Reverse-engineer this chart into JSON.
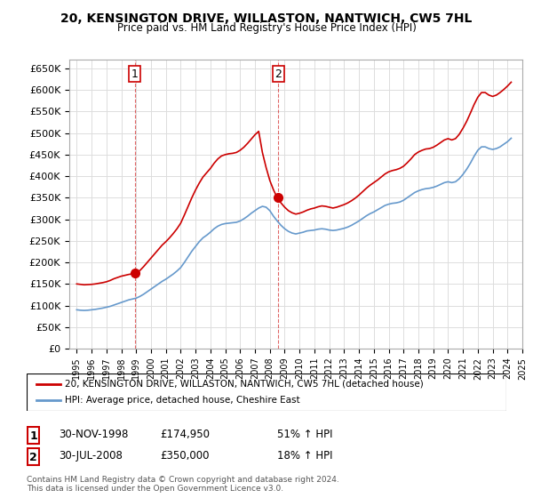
{
  "title": "20, KENSINGTON DRIVE, WILLASTON, NANTWICH, CW5 7HL",
  "subtitle": "Price paid vs. HM Land Registry's House Price Index (HPI)",
  "legend_line1": "20, KENSINGTON DRIVE, WILLASTON, NANTWICH, CW5 7HL (detached house)",
  "legend_line2": "HPI: Average price, detached house, Cheshire East",
  "sale1_label": "1",
  "sale1_date": "30-NOV-1998",
  "sale1_price": "£174,950",
  "sale1_hpi": "51% ↑ HPI",
  "sale2_label": "2",
  "sale2_date": "30-JUL-2008",
  "sale2_price": "£350,000",
  "sale2_hpi": "18% ↑ HPI",
  "copyright": "Contains HM Land Registry data © Crown copyright and database right 2024.\nThis data is licensed under the Open Government Licence v3.0.",
  "line_color_red": "#cc0000",
  "line_color_blue": "#6699cc",
  "marker_color_red": "#cc0000",
  "background_color": "#ffffff",
  "grid_color": "#dddddd",
  "ylim": [
    0,
    670000
  ],
  "yticks": [
    0,
    50000,
    100000,
    150000,
    200000,
    250000,
    300000,
    350000,
    400000,
    450000,
    500000,
    550000,
    600000,
    650000
  ],
  "ylabel_format": "£{0}K",
  "sale1_year": 1998.92,
  "sale1_value": 174950,
  "sale2_year": 2008.58,
  "sale2_value": 350000,
  "hpi_years": [
    1995.0,
    1995.25,
    1995.5,
    1995.75,
    1996.0,
    1996.25,
    1996.5,
    1996.75,
    1997.0,
    1997.25,
    1997.5,
    1997.75,
    1998.0,
    1998.25,
    1998.5,
    1998.75,
    1999.0,
    1999.25,
    1999.5,
    1999.75,
    2000.0,
    2000.25,
    2000.5,
    2000.75,
    2001.0,
    2001.25,
    2001.5,
    2001.75,
    2002.0,
    2002.25,
    2002.5,
    2002.75,
    2003.0,
    2003.25,
    2003.5,
    2003.75,
    2004.0,
    2004.25,
    2004.5,
    2004.75,
    2005.0,
    2005.25,
    2005.5,
    2005.75,
    2006.0,
    2006.25,
    2006.5,
    2006.75,
    2007.0,
    2007.25,
    2007.5,
    2007.75,
    2008.0,
    2008.25,
    2008.5,
    2008.75,
    2009.0,
    2009.25,
    2009.5,
    2009.75,
    2010.0,
    2010.25,
    2010.5,
    2010.75,
    2011.0,
    2011.25,
    2011.5,
    2011.75,
    2012.0,
    2012.25,
    2012.5,
    2012.75,
    2013.0,
    2013.25,
    2013.5,
    2013.75,
    2014.0,
    2014.25,
    2014.5,
    2014.75,
    2015.0,
    2015.25,
    2015.5,
    2015.75,
    2016.0,
    2016.25,
    2016.5,
    2016.75,
    2017.0,
    2017.25,
    2017.5,
    2017.75,
    2018.0,
    2018.25,
    2018.5,
    2018.75,
    2019.0,
    2019.25,
    2019.5,
    2019.75,
    2020.0,
    2020.25,
    2020.5,
    2020.75,
    2021.0,
    2021.25,
    2021.5,
    2021.75,
    2022.0,
    2022.25,
    2022.5,
    2022.75,
    2023.0,
    2023.25,
    2023.5,
    2023.75,
    2024.0,
    2024.25
  ],
  "hpi_values": [
    90000,
    89000,
    88500,
    89000,
    90000,
    91000,
    92500,
    94000,
    96000,
    98000,
    101000,
    104000,
    107000,
    110000,
    113000,
    115000,
    117000,
    121000,
    126000,
    132000,
    138000,
    144000,
    150000,
    156000,
    161000,
    167000,
    173000,
    180000,
    188000,
    200000,
    213000,
    226000,
    237000,
    248000,
    257000,
    263000,
    270000,
    278000,
    284000,
    288000,
    290000,
    291000,
    292000,
    293000,
    296000,
    301000,
    307000,
    314000,
    320000,
    326000,
    330000,
    328000,
    320000,
    307000,
    296000,
    286000,
    278000,
    272000,
    268000,
    266000,
    268000,
    270000,
    273000,
    274000,
    275000,
    277000,
    278000,
    277000,
    275000,
    274000,
    275000,
    277000,
    279000,
    282000,
    286000,
    291000,
    296000,
    302000,
    308000,
    313000,
    317000,
    322000,
    327000,
    332000,
    335000,
    337000,
    338000,
    340000,
    344000,
    350000,
    356000,
    362000,
    366000,
    369000,
    371000,
    372000,
    374000,
    377000,
    381000,
    385000,
    387000,
    385000,
    387000,
    394000,
    404000,
    416000,
    430000,
    446000,
    460000,
    468000,
    468000,
    464000,
    462000,
    464000,
    468000,
    474000,
    480000,
    488000
  ],
  "red_years": [
    1995.0,
    1995.25,
    1995.5,
    1995.75,
    1996.0,
    1996.25,
    1996.5,
    1996.75,
    1997.0,
    1997.25,
    1997.5,
    1997.75,
    1998.0,
    1998.25,
    1998.5,
    1998.75,
    1999.0,
    1999.25,
    1999.5,
    1999.75,
    2000.0,
    2000.25,
    2000.5,
    2000.75,
    2001.0,
    2001.25,
    2001.5,
    2001.75,
    2002.0,
    2002.25,
    2002.5,
    2002.75,
    2003.0,
    2003.25,
    2003.5,
    2003.75,
    2004.0,
    2004.25,
    2004.5,
    2004.75,
    2005.0,
    2005.25,
    2005.5,
    2005.75,
    2006.0,
    2006.25,
    2006.5,
    2006.75,
    2007.0,
    2007.25,
    2007.5,
    2007.75,
    2008.0,
    2008.25,
    2008.5,
    2008.75,
    2009.0,
    2009.25,
    2009.5,
    2009.75,
    2010.0,
    2010.25,
    2010.5,
    2010.75,
    2011.0,
    2011.25,
    2011.5,
    2011.75,
    2012.0,
    2012.25,
    2012.5,
    2012.75,
    2013.0,
    2013.25,
    2013.5,
    2013.75,
    2014.0,
    2014.25,
    2014.5,
    2014.75,
    2015.0,
    2015.25,
    2015.5,
    2015.75,
    2016.0,
    2016.25,
    2016.5,
    2016.75,
    2017.0,
    2017.25,
    2017.5,
    2017.75,
    2018.0,
    2018.25,
    2018.5,
    2018.75,
    2019.0,
    2019.25,
    2019.5,
    2019.75,
    2020.0,
    2020.25,
    2020.5,
    2020.75,
    2021.0,
    2021.25,
    2021.5,
    2021.75,
    2022.0,
    2022.25,
    2022.5,
    2022.75,
    2023.0,
    2023.25,
    2023.5,
    2023.75,
    2024.0,
    2024.25
  ],
  "red_values": [
    150000,
    149000,
    148000,
    148500,
    149000,
    150000,
    151500,
    153000,
    155000,
    158000,
    162000,
    165000,
    168000,
    170000,
    172000,
    173500,
    175000,
    181000,
    190000,
    200000,
    210000,
    220000,
    230000,
    240000,
    248000,
    257000,
    267000,
    278000,
    291000,
    310000,
    330000,
    350000,
    368000,
    384000,
    398000,
    408000,
    418000,
    430000,
    440000,
    447000,
    450000,
    452000,
    453000,
    455000,
    460000,
    467000,
    476000,
    486000,
    496000,
    504000,
    455000,
    420000,
    390000,
    368000,
    350000,
    338000,
    328000,
    320000,
    315000,
    312000,
    314000,
    317000,
    321000,
    324000,
    326000,
    329000,
    331000,
    330000,
    328000,
    326000,
    328000,
    331000,
    334000,
    338000,
    343000,
    349000,
    356000,
    364000,
    372000,
    379000,
    385000,
    391000,
    398000,
    405000,
    410000,
    413000,
    415000,
    418000,
    423000,
    431000,
    440000,
    450000,
    456000,
    460000,
    463000,
    464000,
    467000,
    472000,
    478000,
    484000,
    487000,
    484000,
    487000,
    497000,
    511000,
    527000,
    546000,
    566000,
    583000,
    594000,
    594000,
    588000,
    585000,
    588000,
    594000,
    601000,
    609000,
    618000
  ]
}
